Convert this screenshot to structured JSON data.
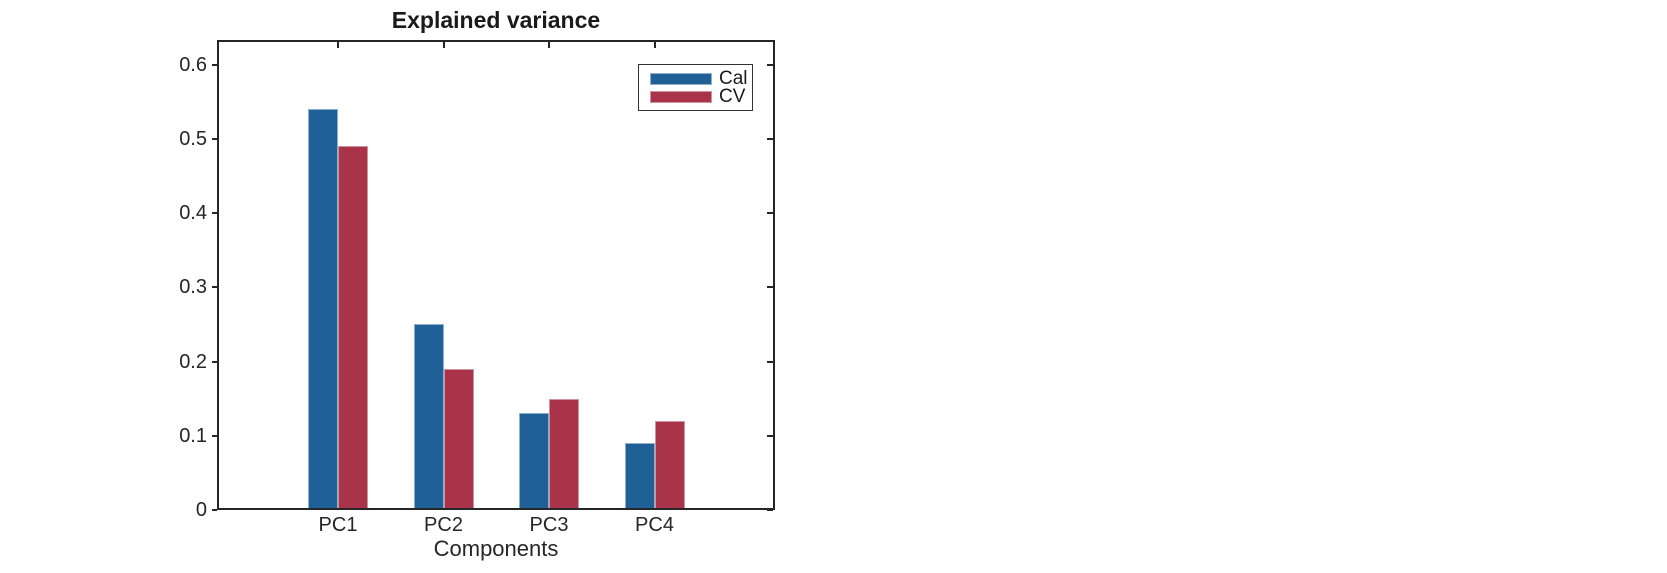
{
  "figure": {
    "background": "#FFFFFF",
    "axis_color": "#262626",
    "text_color": "#262626"
  },
  "chart_data": {
    "type": "bar",
    "bar_layout": "grouped",
    "title": "Explained variance",
    "xlabel": "Components",
    "ylabel": "",
    "categories": [
      "PC1",
      "PC2",
      "PC3",
      "PC4"
    ],
    "series": [
      {
        "name": "Cal",
        "color": "#1F6096",
        "edge_color": "#8FAECB",
        "values": [
          0.54,
          0.25,
          0.13,
          0.09
        ]
      },
      {
        "name": "CV",
        "color": "#A93348",
        "edge_color": "#CE93A0",
        "values": [
          0.49,
          0.19,
          0.15,
          0.12
        ]
      }
    ],
    "ylim": [
      0,
      0.633
    ],
    "yticks": [
      0,
      0.1,
      0.2,
      0.3,
      0.4,
      0.5,
      0.6
    ],
    "ytick_labels": [
      "0",
      "0.1",
      "0.2",
      "0.3",
      "0.4",
      "0.5",
      "0.6"
    ],
    "grid": false,
    "box": true,
    "legend": {
      "position": "top-right-inside",
      "items": [
        "Cal",
        "CV"
      ]
    }
  }
}
